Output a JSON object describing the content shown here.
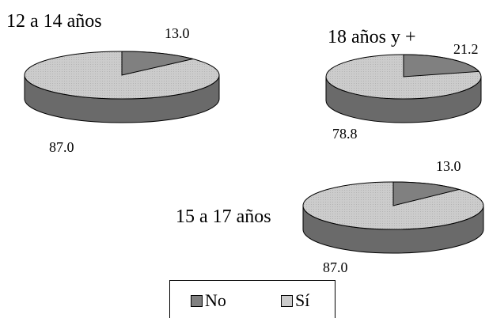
{
  "chart_data": [
    {
      "type": "pie",
      "title": "12 a 14 años",
      "categories": [
        "No",
        "Sí"
      ],
      "values": [
        13.0,
        87.0
      ],
      "labels": [
        "13.0",
        "87.0"
      ]
    },
    {
      "type": "pie",
      "title": "18 años y +",
      "categories": [
        "No",
        "Sí"
      ],
      "values": [
        21.2,
        78.8
      ],
      "labels": [
        "21.2",
        "78.8"
      ]
    },
    {
      "type": "pie",
      "title": "15 a 17 años",
      "categories": [
        "No",
        "Sí"
      ],
      "values": [
        13.0,
        87.0
      ],
      "labels": [
        "13.0",
        "87.0"
      ]
    }
  ],
  "legend": {
    "items": [
      {
        "label": "No",
        "color": "#808080"
      },
      {
        "label": "Sí",
        "color": "#cccccc"
      }
    ]
  },
  "colors": {
    "no_top": "#808080",
    "no_side": "#555555",
    "si_top": "#cccccc",
    "si_side": "#6a6a6a",
    "outline": "#000000"
  }
}
